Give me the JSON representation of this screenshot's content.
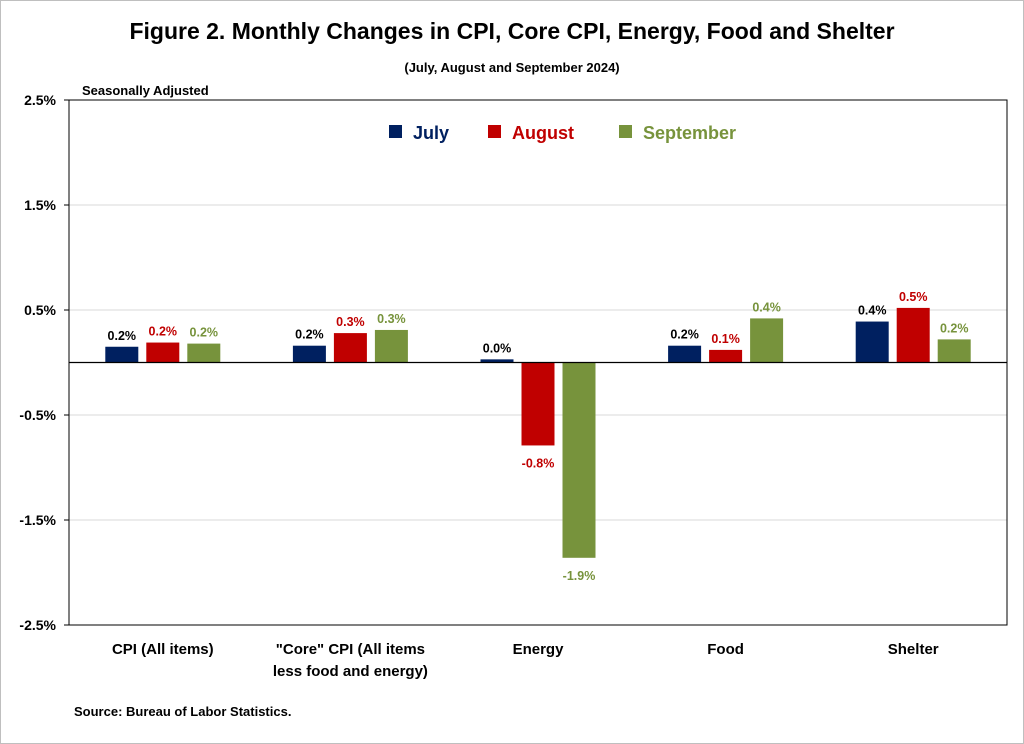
{
  "chart_data": {
    "type": "bar",
    "title": "Figure 2. Monthly Changes in CPI, Core CPI, Energy, Food and Shelter",
    "subtitle": "(July, August and September 2024)",
    "note": "Seasonally Adjusted",
    "source": "Source: Bureau of Labor Statistics.",
    "categories": [
      [
        "CPI (All items)"
      ],
      [
        "\"Core\" CPI (All items",
        "less food and energy)"
      ],
      [
        "Energy"
      ],
      [
        "Food"
      ],
      [
        "Shelter"
      ]
    ],
    "series": [
      {
        "name": "July",
        "color": "#002060",
        "values": [
          0.15,
          0.16,
          0.03,
          0.16,
          0.39
        ],
        "labels": [
          "0.2%",
          "0.2%",
          "0.0%",
          "0.2%",
          "0.4%"
        ]
      },
      {
        "name": "August",
        "color": "#c00000",
        "values": [
          0.19,
          0.28,
          -0.79,
          0.12,
          0.52
        ],
        "labels": [
          "0.2%",
          "0.3%",
          "-0.8%",
          "0.1%",
          "0.5%"
        ]
      },
      {
        "name": "September",
        "color": "#77933c",
        "values": [
          0.18,
          0.31,
          -1.86,
          0.42,
          0.22
        ],
        "labels": [
          "0.2%",
          "0.3%",
          "-1.9%",
          "0.4%",
          "0.2%"
        ]
      }
    ],
    "ylim": [
      -2.5,
      2.5
    ],
    "yticks": [
      2.5,
      1.5,
      0.5,
      -0.5,
      -1.5,
      -2.5
    ],
    "ytick_labels": [
      "2.5%",
      "1.5%",
      "0.5%",
      "-0.5%",
      "-1.5%",
      "-2.5%"
    ],
    "grid": true,
    "legend_position": "top-center"
  }
}
